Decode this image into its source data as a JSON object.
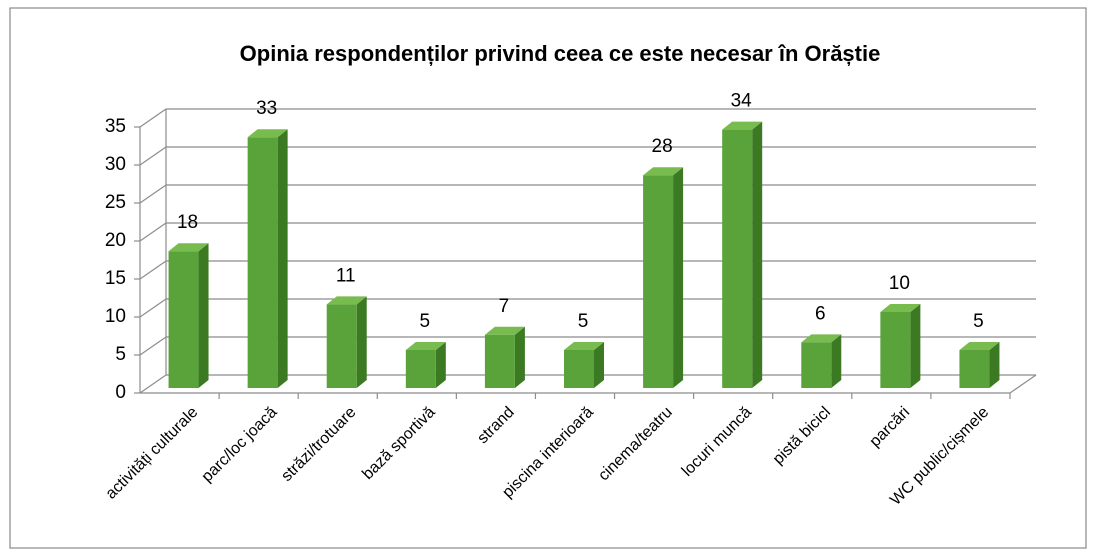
{
  "chart_data": {
    "type": "bar3d",
    "title": "Opinia respondenților privind ceea ce este necesar în Orăștie",
    "categories": [
      "activități culturale",
      "parc/loc joacă",
      "străzi/trotuare",
      "bază sportivă",
      "strand",
      "piscina interioară",
      "cinema/teatru",
      "locuri muncă",
      "pistă bicicl",
      "parcări",
      "WC public/cișmele"
    ],
    "values": [
      18,
      33,
      11,
      5,
      7,
      5,
      28,
      34,
      6,
      10,
      5
    ],
    "color": "#5aa33a",
    "ylim": [
      0,
      35
    ],
    "yticks": [
      0,
      5,
      10,
      15,
      20,
      25,
      30,
      35
    ],
    "grid": true
  }
}
